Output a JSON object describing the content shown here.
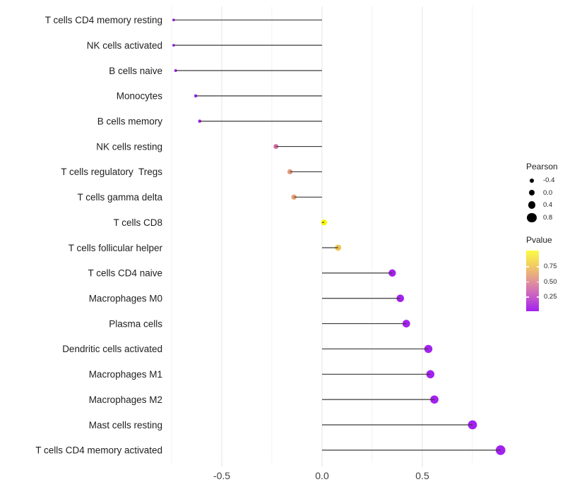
{
  "chart_data": {
    "type": "lollipop",
    "orientation": "horizontal",
    "title": "",
    "xlabel": "",
    "ylabel": "",
    "xlim": [
      -0.82,
      0.97
    ],
    "baseline": 0,
    "grid": true,
    "x_ticks": [
      {
        "label": "-0.5",
        "value": -0.5
      },
      {
        "label": "0.0",
        "value": 0.0
      },
      {
        "label": "0.5",
        "value": 0.5
      }
    ],
    "gridlines_major": [
      -0.5,
      0.0,
      0.5
    ],
    "gridlines_minor": [
      -0.75,
      -0.25,
      0.25,
      0.75
    ],
    "stem_color": "#3A3A3A",
    "points": [
      {
        "label": "T cells CD4 memory resting",
        "pearson": -0.74,
        "color": "#A321F0"
      },
      {
        "label": "NK cells activated",
        "pearson": -0.74,
        "color": "#A321F0"
      },
      {
        "label": "B cells naive",
        "pearson": -0.73,
        "color": "#A321F0"
      },
      {
        "label": "Monocytes",
        "pearson": -0.63,
        "color": "#A321F0"
      },
      {
        "label": "B cells memory",
        "pearson": -0.61,
        "color": "#A321F0"
      },
      {
        "label": "NK cells resting",
        "pearson": -0.23,
        "color": "#D06EA6"
      },
      {
        "label": "T cells regulatory  Tregs",
        "pearson": -0.16,
        "color": "#E69A7E"
      },
      {
        "label": "T cells gamma delta",
        "pearson": -0.14,
        "color": "#E5A172"
      },
      {
        "label": "T cells CD8",
        "pearson": 0.01,
        "color": "#F7F600"
      },
      {
        "label": "T cells follicular helper",
        "pearson": 0.08,
        "color": "#EEC251"
      },
      {
        "label": "T cells CD4 naive",
        "pearson": 0.35,
        "color": "#A321F0"
      },
      {
        "label": "Macrophages M0",
        "pearson": 0.39,
        "color": "#A321F0"
      },
      {
        "label": "Plasma cells",
        "pearson": 0.42,
        "color": "#A321F0"
      },
      {
        "label": "Dendritic cells activated",
        "pearson": 0.53,
        "color": "#A321F0"
      },
      {
        "label": "Macrophages M1",
        "pearson": 0.54,
        "color": "#A321F0"
      },
      {
        "label": "Macrophages M2",
        "pearson": 0.56,
        "color": "#A321F0"
      },
      {
        "label": "Mast cells resting",
        "pearson": 0.75,
        "color": "#A321F0"
      },
      {
        "label": "T cells CD4 memory activated",
        "pearson": 0.89,
        "color": "#A321F0"
      }
    ],
    "legend_size": {
      "title": "Pearson",
      "dot_color": "#000000",
      "entries": [
        {
          "label": "-0.4",
          "value": -0.4
        },
        {
          "label": "0.0",
          "value": 0.0
        },
        {
          "label": "0.4",
          "value": 0.4
        },
        {
          "label": "0.8",
          "value": 0.8
        }
      ]
    },
    "legend_color": {
      "title": "Pvalue",
      "ticks": [
        {
          "label": "0.75",
          "value": 0.75
        },
        {
          "label": "0.50",
          "value": 0.5
        },
        {
          "label": "0.25",
          "value": 0.25
        }
      ],
      "gradient_bottom_to_top": [
        "#A321F0",
        "#C85EC5",
        "#E29597",
        "#F2CC61",
        "#FAFB46"
      ]
    }
  }
}
